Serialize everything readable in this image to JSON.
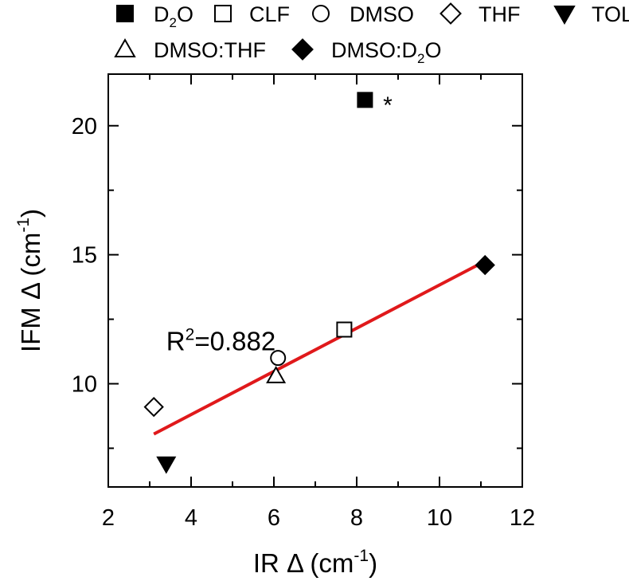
{
  "chart_data": {
    "type": "scatter",
    "xlabel": {
      "main": "IR Δ (cm",
      "sup": "-1",
      "tail": ")"
    },
    "ylabel": {
      "main": "IFM Δ (cm",
      "sup": "-1",
      "tail": ")"
    },
    "xlim": [
      2,
      12
    ],
    "ylim": [
      6,
      22
    ],
    "xticks": [
      2,
      4,
      6,
      8,
      10,
      12
    ],
    "yticks": [
      10,
      15,
      20
    ],
    "annotation": {
      "prefix": "R",
      "sup": "2",
      "suffix": "=0.882",
      "x": 3.4,
      "y": 11.6
    },
    "outlier_note": {
      "text": "*",
      "x": 8.75,
      "y": 20.8
    },
    "series": [
      {
        "name": "D2O",
        "label": {
          "pre": "D",
          "sub": "2",
          "post": "O"
        },
        "marker": "square-filled",
        "x": 8.2,
        "y": 21.0
      },
      {
        "name": "CLF",
        "label": {
          "pre": "CLF"
        },
        "marker": "square-open",
        "x": 7.7,
        "y": 12.1
      },
      {
        "name": "DMSO",
        "label": {
          "pre": "DMSO"
        },
        "marker": "circle-open",
        "x": 6.1,
        "y": 11.0
      },
      {
        "name": "THF",
        "label": {
          "pre": "THF"
        },
        "marker": "diamond-open",
        "x": 3.1,
        "y": 9.1
      },
      {
        "name": "TOL",
        "label": {
          "pre": "TOL"
        },
        "marker": "triangle-down-filled",
        "x": 3.4,
        "y": 6.9
      },
      {
        "name": "DMSO:THF",
        "label": {
          "pre": "DMSO:THF"
        },
        "marker": "triangle-up-open",
        "x": 6.05,
        "y": 10.3
      },
      {
        "name": "DMSO:D2O",
        "label": {
          "pre": "DMSO:D",
          "sub": "2",
          "post": "O"
        },
        "marker": "diamond-filled",
        "x": 11.1,
        "y": 14.6
      }
    ],
    "fit_line": {
      "color": "#e0191b",
      "x": [
        3.1,
        11.1
      ],
      "y": [
        8.05,
        14.75
      ]
    },
    "legend": {
      "placement": "top"
    }
  }
}
